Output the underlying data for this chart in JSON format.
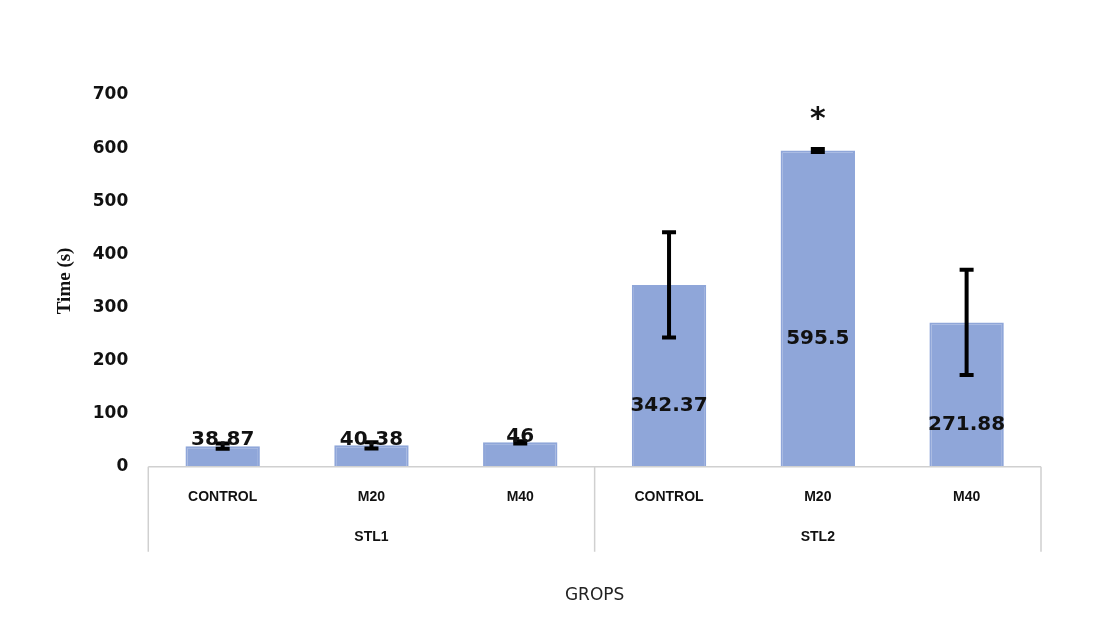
{
  "chart_data": {
    "type": "bar",
    "xlabel": "GROPS",
    "ylabel": "Time (s)",
    "categories": [
      "CONTROL",
      "M20",
      "M40",
      "CONTROL",
      "M20",
      "M40"
    ],
    "values": [
      38.87,
      40.38,
      46,
      342.37,
      595.5,
      271.88
    ],
    "errors": [
      5,
      6,
      2,
      99,
      3,
      99
    ],
    "color": "#8fa6d9",
    "ylim": [
      0,
      700
    ],
    "yticks": [
      0,
      100,
      200,
      300,
      400,
      500,
      600,
      700
    ],
    "grid": false,
    "legend": false,
    "data_labels": true,
    "annotations": [
      "*",
      "STL1",
      "STL2"
    ]
  }
}
